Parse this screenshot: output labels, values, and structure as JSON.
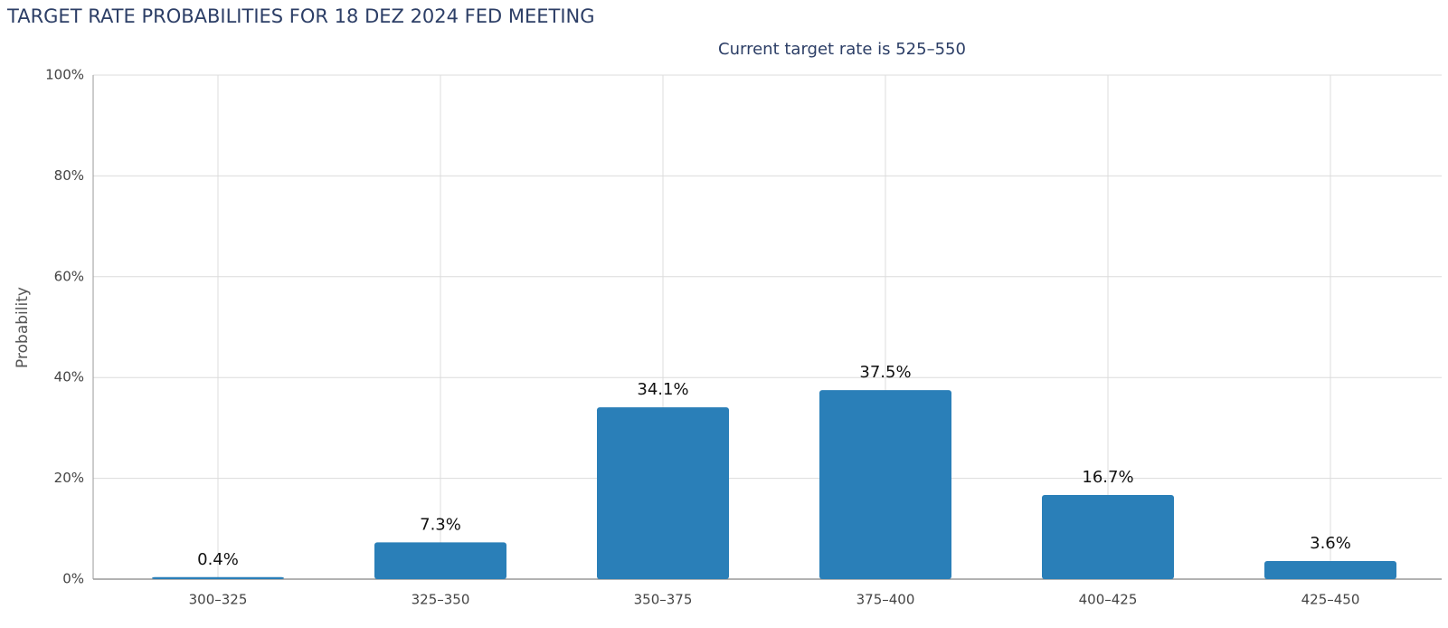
{
  "chart_data": {
    "type": "bar",
    "title": "TARGET RATE PROBABILITIES FOR 18 DEZ 2024 FED MEETING",
    "subtitle": "Current target rate is 525–550",
    "y_label": "Probability",
    "categories": [
      "300–325",
      "325–350",
      "350–375",
      "375–400",
      "400–425",
      "425–450"
    ],
    "values": [
      0.4,
      7.3,
      34.1,
      37.5,
      16.7,
      3.6
    ],
    "value_labels": [
      "0.4%",
      "7.3%",
      "34.1%",
      "37.5%",
      "16.7%",
      "3.6%"
    ],
    "color": "#2a7fb8",
    "ylim": [
      0,
      100
    ],
    "yticks": [
      {
        "value": 0,
        "label": "0%"
      },
      {
        "value": 20,
        "label": "20%"
      },
      {
        "value": 40,
        "label": "40%"
      },
      {
        "value": 60,
        "label": "60%"
      },
      {
        "value": 80,
        "label": "80%"
      },
      {
        "value": 100,
        "label": "100%"
      }
    ],
    "grid": true
  }
}
